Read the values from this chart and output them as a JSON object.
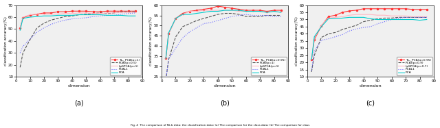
{
  "subplots": [
    {
      "label": "(a)",
      "ylim": [
        10,
        70
      ],
      "yticks": [
        10,
        20,
        30,
        40,
        50,
        60,
        70
      ],
      "legend": [
        "TL₁_PCA(α=1)",
        "PCAl(p=0.5)",
        "LpSPCA(p=1)",
        "PCAL1",
        "PCA"
      ],
      "lines": {
        "tl1": [
          51.0,
          59.5,
          61.5,
          62.5,
          63.5,
          63.5,
          64.5,
          64.5,
          65.0,
          65.0,
          65.0,
          64.5,
          64.5,
          65.0,
          65.0,
          65.0,
          65.0,
          65.0
        ],
        "pcal": [
          18.0,
          30.0,
          41.0,
          51.0,
          55.0,
          57.5,
          59.0,
          60.5,
          61.0,
          62.0,
          62.5,
          63.0,
          63.5,
          63.0,
          63.5,
          64.5,
          64.5,
          64.5
        ],
        "lpspc": [
          51.0,
          60.0,
          62.0,
          62.5,
          62.5,
          62.5,
          62.5,
          63.0,
          63.0,
          63.5,
          63.5,
          63.0,
          63.0,
          63.5,
          63.5,
          64.0,
          64.0,
          64.0
        ],
        "pcal1": [
          30.0,
          35.5,
          41.5,
          47.5,
          51.0,
          54.0,
          56.0,
          57.5,
          58.5,
          59.0,
          59.5,
          60.5,
          61.0,
          61.5,
          61.5,
          62.5,
          63.0,
          63.5
        ],
        "pca": [
          49.0,
          59.0,
          60.0,
          60.5,
          61.0,
          61.0,
          61.5,
          61.5,
          61.5,
          62.0,
          62.0,
          62.0,
          62.0,
          61.5,
          61.5,
          61.5,
          61.0,
          61.0
        ]
      }
    },
    {
      "label": "(b)",
      "ylim": [
        25,
        60
      ],
      "yticks": [
        25,
        30,
        35,
        40,
        45,
        50,
        55,
        60
      ],
      "legend": [
        "TL₁_PCA(α=0.95)",
        "PCAl(p=1)",
        "LpSPCA(p=1)",
        "PCAL1",
        "PCA"
      ],
      "lines": {
        "tl1": [
          34.0,
          46.0,
          53.5,
          56.0,
          57.0,
          57.5,
          58.0,
          58.5,
          59.5,
          59.0,
          58.5,
          58.0,
          57.5,
          57.5,
          57.5,
          57.0,
          57.5,
          57.5
        ],
        "pcal": [
          23.5,
          33.5,
          44.5,
          49.5,
          51.0,
          52.5,
          53.5,
          54.5,
          55.5,
          56.0,
          56.0,
          55.5,
          54.5,
          54.5,
          54.5,
          55.0,
          55.0,
          55.0
        ],
        "lpspc": [
          34.0,
          46.0,
          53.5,
          55.5,
          57.0,
          57.0,
          57.5,
          57.5,
          57.5,
          57.5,
          57.5,
          57.0,
          57.0,
          57.0,
          57.0,
          56.5,
          57.0,
          56.5
        ],
        "pcal1": [
          23.5,
          33.5,
          39.0,
          44.0,
          47.0,
          49.0,
          51.0,
          51.5,
          52.5,
          53.5,
          54.5,
          55.0,
          55.5,
          55.0,
          55.0,
          55.0,
          54.5,
          54.5
        ],
        "pca": [
          34.0,
          46.5,
          53.5,
          55.5,
          55.5,
          56.0,
          56.5,
          57.0,
          57.0,
          57.5,
          57.5,
          57.5,
          57.0,
          57.0,
          57.0,
          56.5,
          57.0,
          56.5
        ]
      }
    },
    {
      "label": "(c)",
      "ylim": [
        10,
        60
      ],
      "yticks": [
        10,
        15,
        20,
        25,
        30,
        35,
        40,
        45,
        50,
        55,
        60
      ],
      "legend": [
        "TL₁_PCA(α=0.95)",
        "PCAl(p=0.9)",
        "LpSPCA(p=0.7)",
        "PCAL1",
        "PCA"
      ],
      "lines": {
        "tl1": [
          22.0,
          36.0,
          45.5,
          52.0,
          53.0,
          55.0,
          56.0,
          56.5,
          57.5,
          57.5,
          57.5,
          57.5,
          57.5,
          57.5,
          57.5,
          57.0,
          57.0,
          57.0
        ],
        "pcal": [
          13.5,
          25.0,
          37.5,
          40.0,
          41.0,
          43.0,
          44.5,
          46.0,
          48.5,
          49.5,
          50.5,
          51.0,
          51.0,
          51.5,
          51.5,
          51.5,
          51.5,
          51.5
        ],
        "lpspc": [
          22.0,
          37.0,
          46.0,
          51.0,
          51.5,
          52.0,
          53.0,
          53.5,
          53.5,
          53.5,
          53.0,
          53.0,
          52.5,
          52.5,
          52.5,
          52.0,
          52.0,
          52.0
        ],
        "pcal1": [
          14.0,
          28.0,
          35.5,
          36.5,
          38.0,
          39.5,
          42.0,
          43.5,
          44.5,
          45.0,
          47.0,
          48.5,
          50.0,
          51.0,
          51.5,
          51.5,
          51.5,
          51.5
        ],
        "pca": [
          22.0,
          38.0,
          45.0,
          50.5,
          50.5,
          51.0,
          51.5,
          51.5,
          51.5,
          50.5,
          50.0,
          50.0,
          50.0,
          50.0,
          50.0,
          50.0,
          49.5,
          50.0
        ]
      }
    }
  ],
  "x_ticks": [
    0,
    10,
    20,
    30,
    40,
    50,
    60,
    70,
    80,
    90
  ],
  "x_data": [
    3,
    5,
    10,
    15,
    20,
    25,
    30,
    35,
    40,
    45,
    50,
    55,
    60,
    65,
    70,
    75,
    80,
    85
  ],
  "colors": {
    "tl1": "#FF3333",
    "pcal": "#555555",
    "lpspc": "#FFB6C1",
    "pcal1": "#6666FF",
    "pca": "#00CCCC"
  },
  "styles": {
    "tl1": {
      "ls": "-",
      "marker": "o",
      "ms": 1.5,
      "lw": 0.8,
      "dashes": []
    },
    "pcal": {
      "ls": "--",
      "marker": "",
      "ms": 0,
      "lw": 0.8,
      "dashes": [
        3,
        2
      ]
    },
    "lpspc": {
      "ls": "-",
      "marker": "",
      "ms": 0,
      "lw": 0.8,
      "dashes": []
    },
    "pcal1": {
      "ls": ":",
      "marker": "",
      "ms": 0,
      "lw": 0.8,
      "dashes": []
    },
    "pca": {
      "ls": "-",
      "marker": "",
      "ms": 0,
      "lw": 0.8,
      "dashes": []
    }
  },
  "xlabel": "dimension",
  "ylabel": "classification accuracy(%)",
  "caption": "Fig. 4  The comparison of Nt-b data: the classification data; (a) The comparison for the class data; (b) The comparison for class",
  "bg_color": "#f0f0f0"
}
